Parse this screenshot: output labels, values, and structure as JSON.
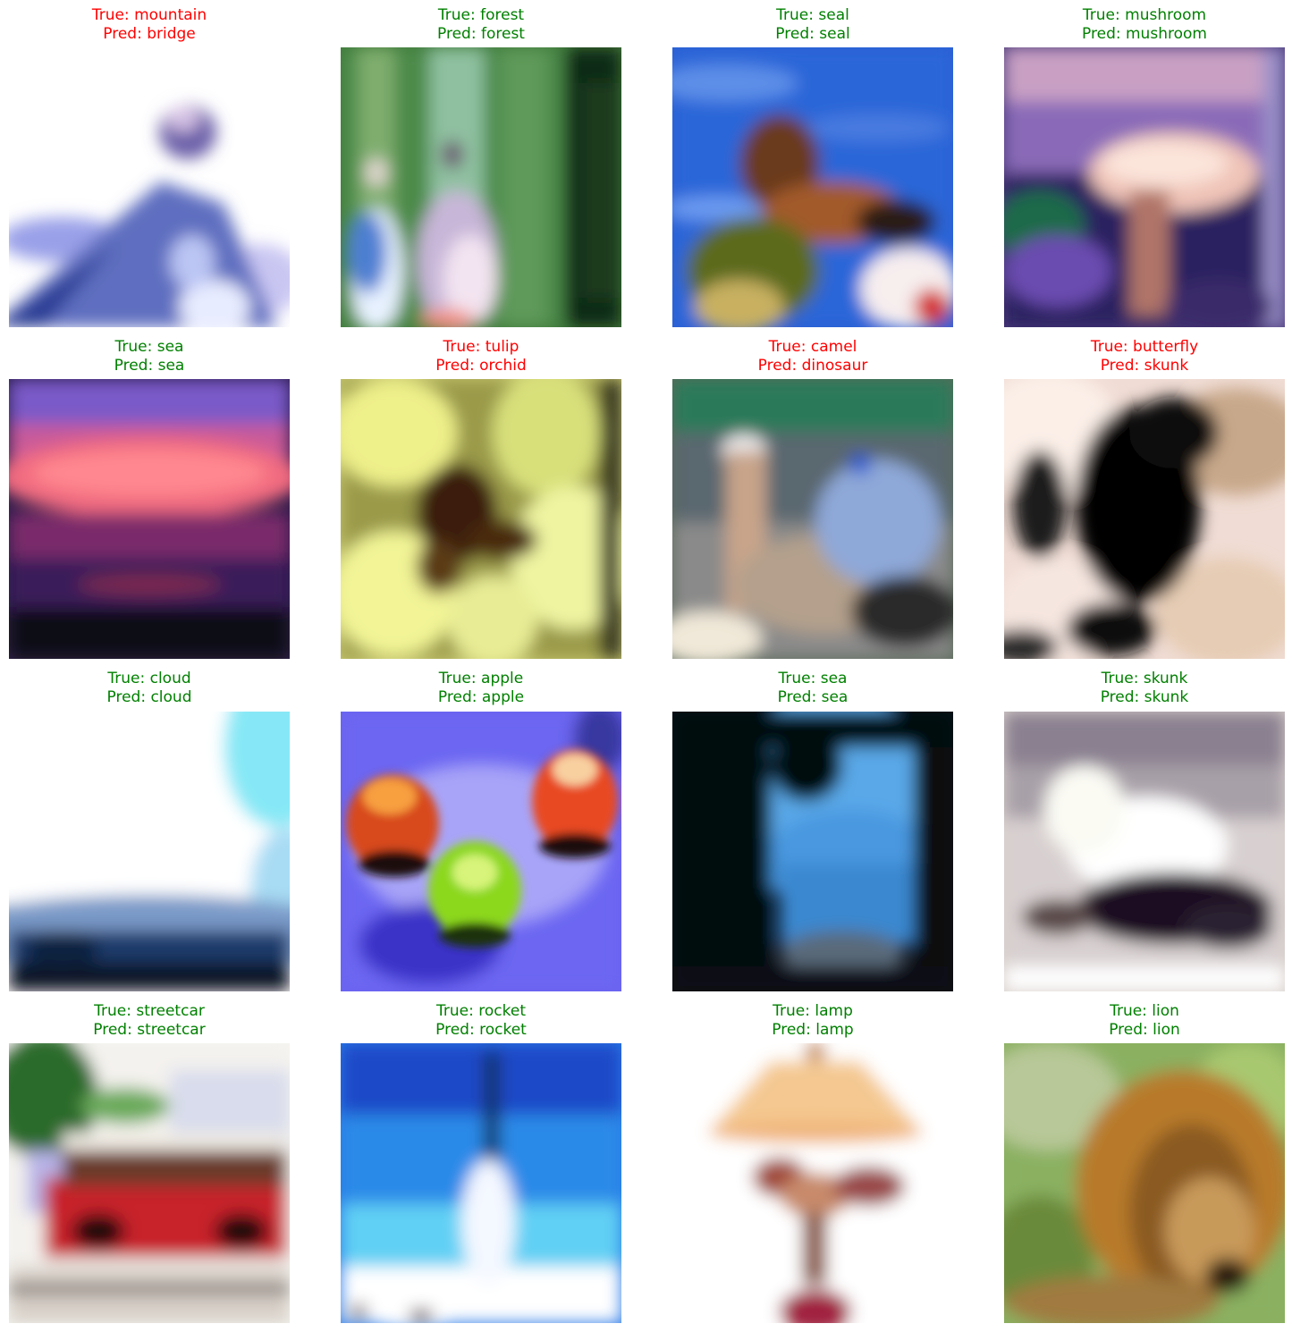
{
  "colors": {
    "correct": "#008000",
    "wrong": "#ff0000"
  },
  "panels": [
    {
      "true_label": "True: mountain",
      "pred_label": "Pred: bridge",
      "correct": false,
      "scene": "mountain"
    },
    {
      "true_label": "True: forest",
      "pred_label": "Pred: forest",
      "correct": true,
      "scene": "forest"
    },
    {
      "true_label": "True: seal",
      "pred_label": "Pred: seal",
      "correct": true,
      "scene": "seal"
    },
    {
      "true_label": "True: mushroom",
      "pred_label": "Pred: mushroom",
      "correct": true,
      "scene": "mushroom"
    },
    {
      "true_label": "True: sea",
      "pred_label": "Pred: sea",
      "correct": true,
      "scene": "sunset-sea"
    },
    {
      "true_label": "True: tulip",
      "pred_label": "Pred: orchid",
      "correct": false,
      "scene": "tulip"
    },
    {
      "true_label": "True: camel",
      "pred_label": "Pred: dinosaur",
      "correct": false,
      "scene": "camel"
    },
    {
      "true_label": "True: butterfly",
      "pred_label": "Pred: skunk",
      "correct": false,
      "scene": "butterfly"
    },
    {
      "true_label": "True: cloud",
      "pred_label": "Pred: cloud",
      "correct": true,
      "scene": "cloud"
    },
    {
      "true_label": "True: apple",
      "pred_label": "Pred: apple",
      "correct": true,
      "scene": "apple"
    },
    {
      "true_label": "True: sea",
      "pred_label": "Pred: sea",
      "correct": true,
      "scene": "cove-sea"
    },
    {
      "true_label": "True: skunk",
      "pred_label": "Pred: skunk",
      "correct": true,
      "scene": "skunk"
    },
    {
      "true_label": "True: streetcar",
      "pred_label": "Pred: streetcar",
      "correct": true,
      "scene": "streetcar"
    },
    {
      "true_label": "True: rocket",
      "pred_label": "Pred: rocket",
      "correct": true,
      "scene": "rocket"
    },
    {
      "true_label": "True: lamp",
      "pred_label": "Pred: lamp",
      "correct": true,
      "scene": "lamp"
    },
    {
      "true_label": "True: lion",
      "pred_label": "Pred: lion",
      "correct": true,
      "scene": "lion"
    }
  ]
}
